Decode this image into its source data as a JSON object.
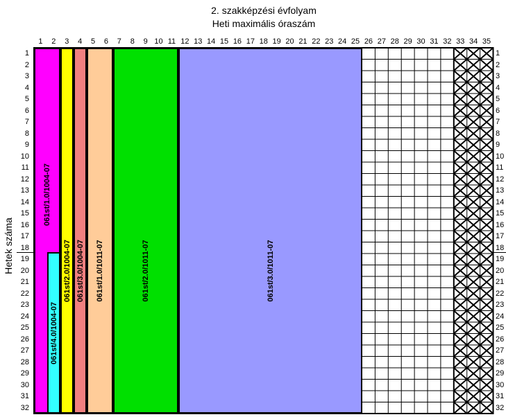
{
  "title_line1": "2. szakképzési évfolyam",
  "title_line2": "Heti maximális óraszám",
  "y_axis_label": "Hetek száma",
  "columns": [
    "1",
    "2",
    "3",
    "4",
    "5",
    "6",
    "7",
    "8",
    "9",
    "10",
    "11",
    "12",
    "13",
    "14",
    "15",
    "16",
    "17",
    "18",
    "19",
    "20",
    "21",
    "22",
    "23",
    "24",
    "25",
    "26",
    "27",
    "28",
    "29",
    "30",
    "31",
    "32",
    "33",
    "34",
    "35"
  ],
  "weeks": [
    "1",
    "2",
    "3",
    "4",
    "5",
    "6",
    "7",
    "8",
    "9",
    "10",
    "11",
    "12",
    "13",
    "14",
    "15",
    "16",
    "17",
    "18",
    "19",
    "20",
    "21",
    "22",
    "23",
    "24",
    "25",
    "26",
    "27",
    "28",
    "29",
    "30",
    "31",
    "32"
  ],
  "modules": [
    {
      "label": "061st/1.0/1004-07",
      "color": "#ff00ff"
    },
    {
      "label": "061st/4.0/1004-07",
      "color": "#33ffff"
    },
    {
      "label": "061st/2.0/1004-07",
      "color": "#ffff00"
    },
    {
      "label": "061st/3.0/1004-07",
      "color": "#f08080"
    },
    {
      "label": "061st/1.0/1011-07",
      "color": "#ffcc99"
    },
    {
      "label": "061st/2.0/1011-07",
      "color": "#00e000"
    },
    {
      "label": "061st/3.0/1011-07",
      "color": "#9999ff"
    }
  ]
}
